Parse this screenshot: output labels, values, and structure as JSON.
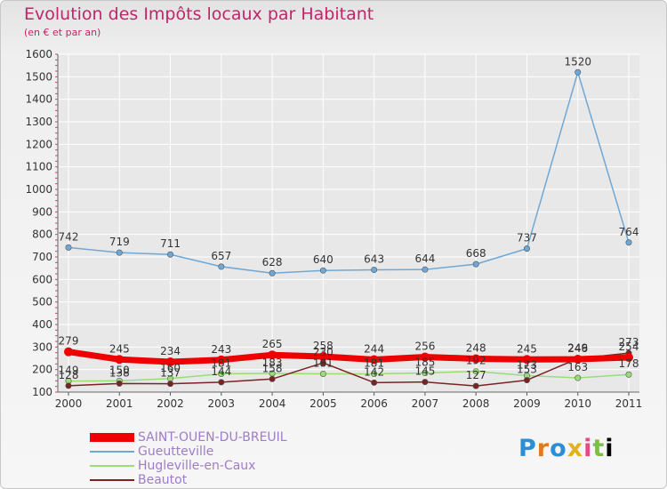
{
  "header": {
    "title": "Evolution des Impôts locaux par Habitant",
    "subtitle": "(en € et par an)"
  },
  "logo": {
    "text": "Proxiti"
  },
  "colors": {
    "title": "#c0256a",
    "saint_ouen": "#ee0000",
    "gueutteville": "#6fa8d6",
    "hugleville": "#99dd77",
    "beautot": "#7a2323",
    "grid": "#ffffff",
    "axis_text": "#333333"
  },
  "chart_data": {
    "type": "line",
    "title": "Evolution des Impôts locaux par Habitant",
    "subtitle": "(en € et par an)",
    "xlabel": "",
    "ylabel": "",
    "x": [
      "2000",
      "2001",
      "2002",
      "2003",
      "2004",
      "2005",
      "2006",
      "2007",
      "2008",
      "2009",
      "2010",
      "2011"
    ],
    "ylim": [
      100,
      1600
    ],
    "yticks": [
      100,
      200,
      300,
      400,
      500,
      600,
      700,
      800,
      900,
      1000,
      1100,
      1200,
      1300,
      1400,
      1500,
      1600
    ],
    "grid": true,
    "legend_position": "bottom-left",
    "series": [
      {
        "name": "SAINT-OUEN-DU-BREUIL",
        "color": "#ee0000",
        "values": [
          279,
          245,
          234,
          243,
          265,
          258,
          244,
          256,
          248,
          245,
          246,
          254
        ]
      },
      {
        "name": "Gueutteville",
        "color": "#6fa8d6",
        "values": [
          742,
          719,
          711,
          657,
          628,
          640,
          643,
          644,
          668,
          737,
          1520,
          764
        ]
      },
      {
        "name": "Hugleville-en-Caux",
        "color": "#99dd77",
        "values": [
          149,
          150,
          160,
          181,
          183,
          181,
          181,
          185,
          192,
          173,
          163,
          178
        ]
      },
      {
        "name": "Beautot",
        "color": "#7a2323",
        "values": [
          128,
          138,
          137,
          144,
          158,
          230,
          142,
          145,
          127,
          153,
          249,
          273
        ]
      }
    ]
  }
}
